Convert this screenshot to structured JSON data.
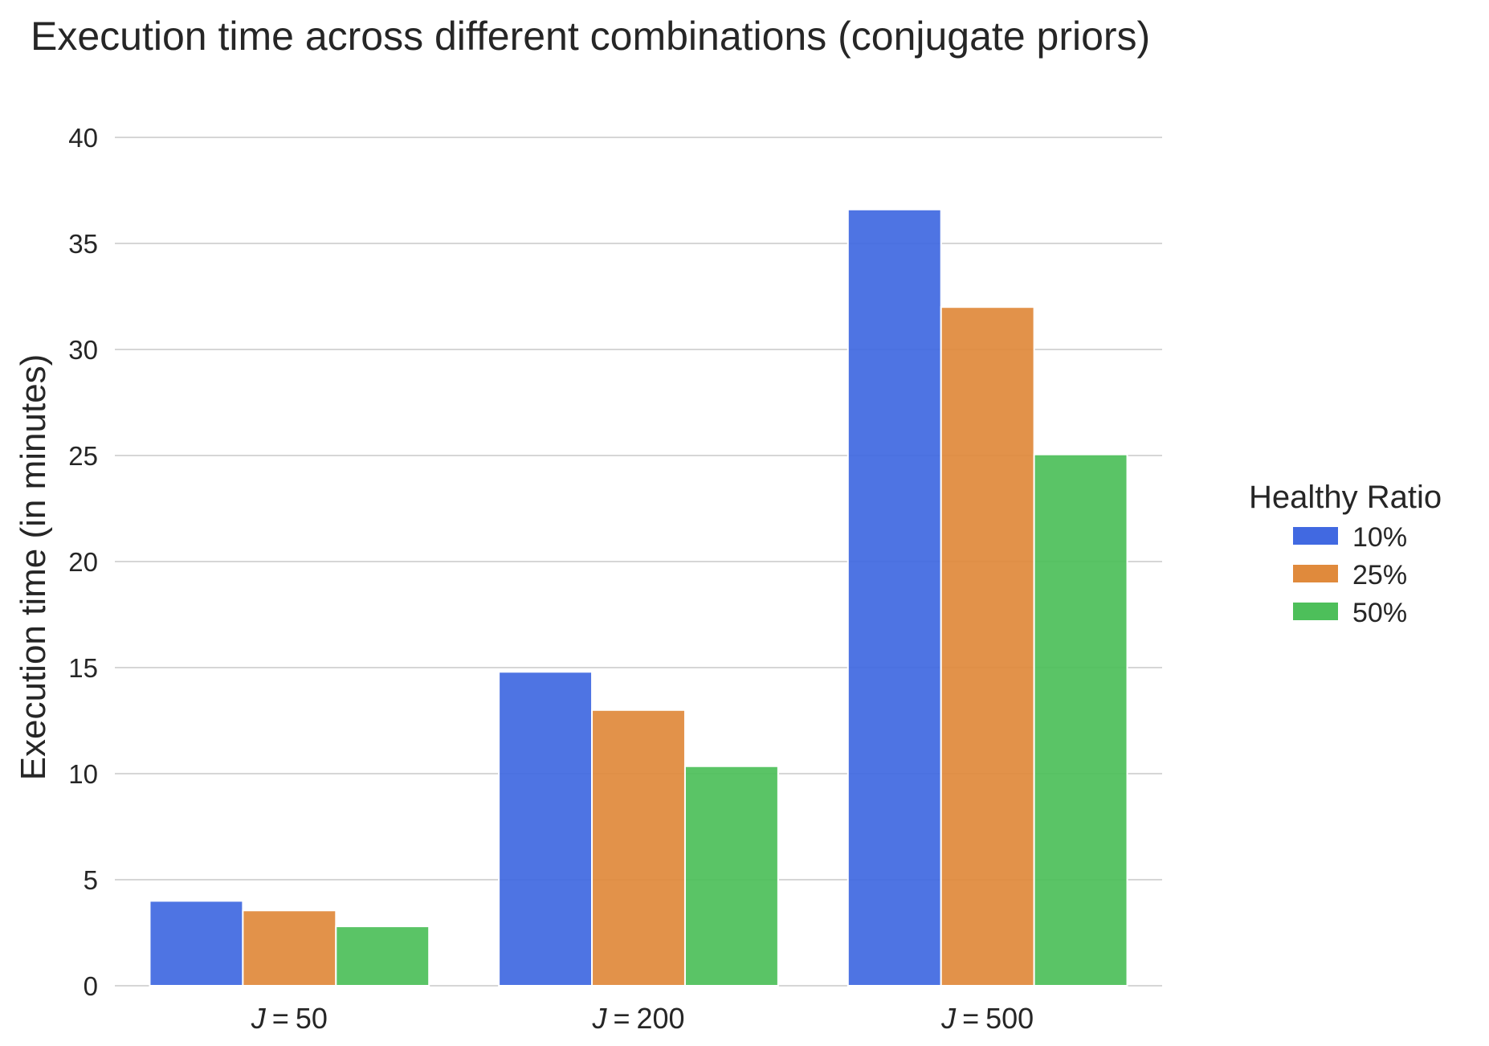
{
  "chart_data": {
    "type": "bar",
    "title": "Execution time across different combinations (conjugate priors)",
    "xlabel": "",
    "ylabel": "Execution time (in minutes)",
    "categories": [
      "J = 50",
      "J = 200",
      "J = 500"
    ],
    "category_display": [
      {
        "var": "J",
        "eq": "=",
        "num": "50"
      },
      {
        "var": "J",
        "eq": "=",
        "num": "200"
      },
      {
        "var": "J",
        "eq": "=",
        "num": "500"
      }
    ],
    "ylim": [
      0,
      40
    ],
    "yticks": [
      0,
      5,
      10,
      15,
      20,
      25,
      30,
      35,
      40
    ],
    "grid": true,
    "legend_title": "Healthy Ratio",
    "legend_position": "right",
    "series": [
      {
        "name": "10%",
        "color": "#4169e1",
        "values": [
          4.0,
          14.8,
          36.6
        ]
      },
      {
        "name": "25%",
        "color": "#e08a3c",
        "values": [
          3.55,
          13.0,
          32.0
        ]
      },
      {
        "name": "50%",
        "color": "#4dbf5a",
        "values": [
          2.8,
          10.35,
          25.05
        ]
      }
    ]
  }
}
